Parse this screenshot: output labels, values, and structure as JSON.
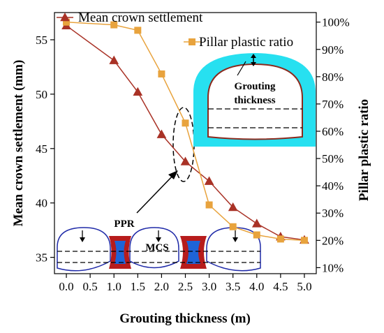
{
  "chart_data": {
    "type": "line",
    "x": [
      0.0,
      1.0,
      1.5,
      2.0,
      2.5,
      3.0,
      3.5,
      4.0,
      4.5,
      5.0
    ],
    "x_tick_labels": [
      "0.0",
      "0.5",
      "1.0",
      "1.5",
      "2.0",
      "2.5",
      "3.0",
      "3.5",
      "4.0",
      "4.5",
      "5.0"
    ],
    "xlabel": "Grouting thickness (m)",
    "ylabel_left": "Mean crown settlement (mm)",
    "ylabel_right": "Pillar plastic ratio",
    "ylim_left": [
      33.5,
      57.5
    ],
    "ylim_right": [
      7.8,
      103.5
    ],
    "y_left_ticks": [
      "35",
      "40",
      "45",
      "50",
      "55"
    ],
    "y_right_ticks": [
      "10%",
      "20%",
      "30%",
      "40%",
      "50%",
      "60%",
      "70%",
      "80%",
      "90%",
      "100%"
    ],
    "series": [
      {
        "name": "Mean crown settlement",
        "axis": "left",
        "color": "#a93226",
        "marker": "triangle",
        "values": [
          56.3,
          53.1,
          50.2,
          46.3,
          43.8,
          42.0,
          39.6,
          38.1,
          36.9,
          36.6
        ]
      },
      {
        "name": "Pillar plastic ratio",
        "axis": "right",
        "color": "#e8a33d",
        "marker": "square",
        "values": [
          100.0,
          99.0,
          97.0,
          81.0,
          63.0,
          33.0,
          25.0,
          22.0,
          20.5,
          20.0
        ]
      }
    ],
    "legend_position": "top-right",
    "grid": false,
    "annotations": {
      "inset_label_line1": "Grouting",
      "inset_label_line2": "thickness",
      "ppr_label": "PPR",
      "mcs_label": "MCS"
    },
    "colors": {
      "grout_ring": "#27e0f0",
      "tunnel_outline": "#8b2a1e",
      "pillar_outer": "#b71c1c",
      "pillar_inner": "#1e64d8",
      "tunnel_cross_section": "#1f2aa8"
    }
  }
}
